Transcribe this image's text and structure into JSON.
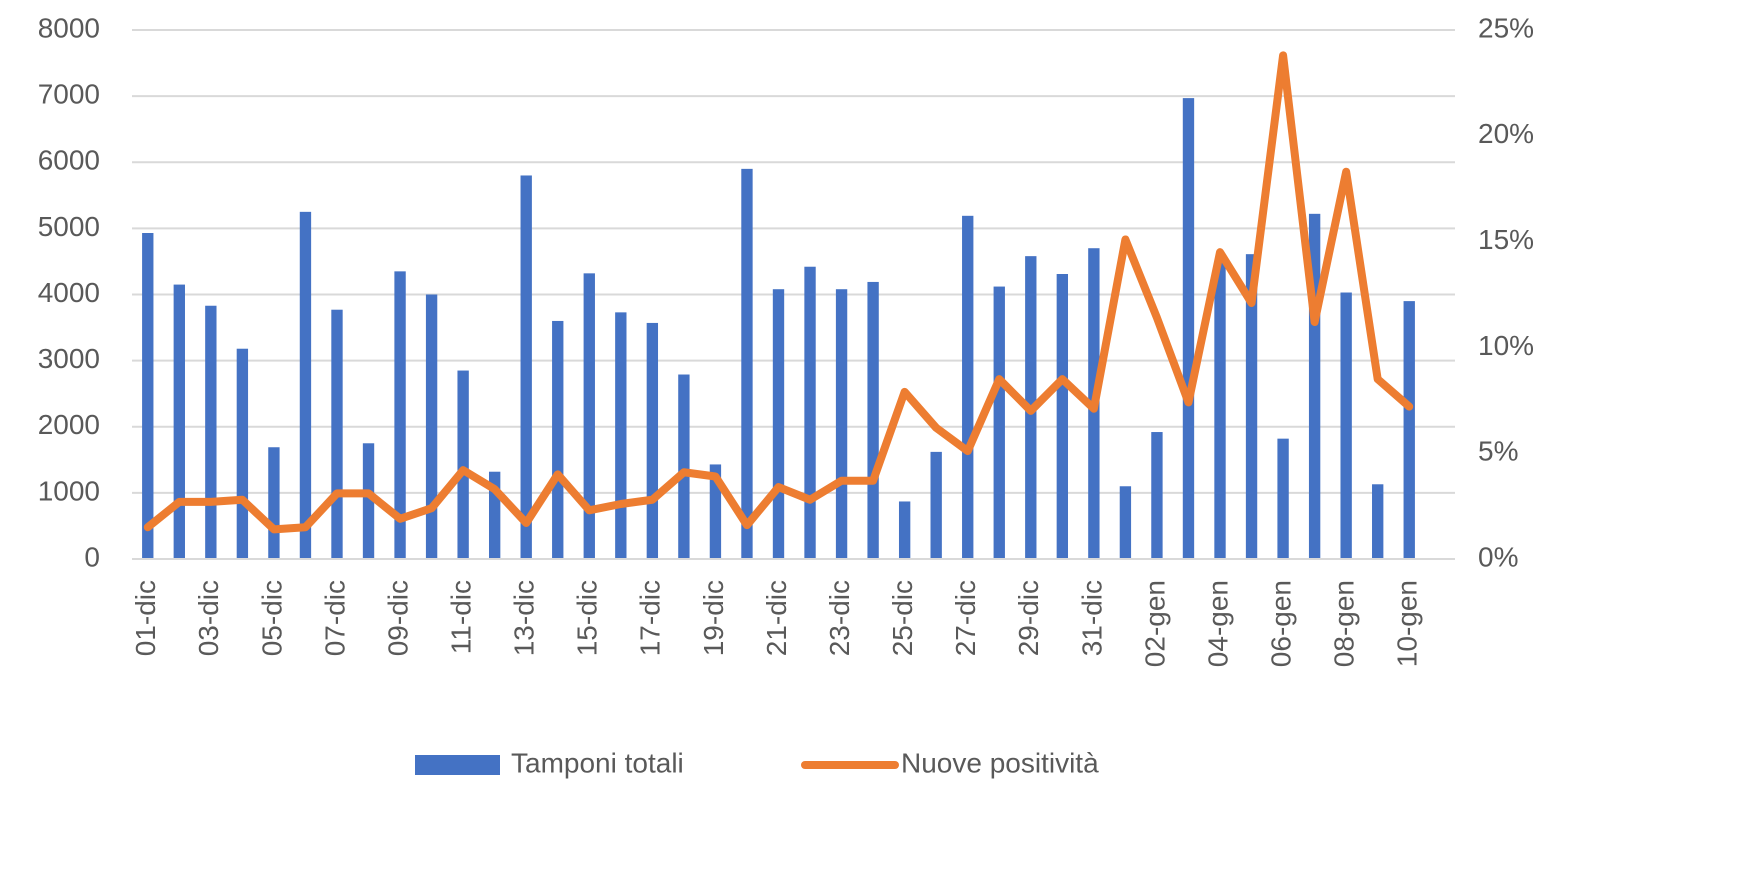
{
  "chart_data": {
    "type": "bar_line",
    "categories": [
      "01-dic",
      null,
      "03-dic",
      null,
      "05-dic",
      null,
      "07-dic",
      null,
      "09-dic",
      null,
      "11-dic",
      null,
      "13-dic",
      null,
      "15-dic",
      null,
      "17-dic",
      null,
      "19-dic",
      null,
      "21-dic",
      null,
      "23-dic",
      null,
      "25-dic",
      null,
      "27-dic",
      null,
      "29-dic",
      null,
      "31-dic",
      null,
      "02-gen",
      null,
      "04-gen",
      null,
      "06-gen",
      null,
      "08-gen",
      null,
      "10-gen"
    ],
    "series": [
      {
        "name": "Tamponi totali",
        "color": "#4472c4",
        "type": "bar",
        "values": [
          4930,
          4150,
          3830,
          3180,
          1690,
          5250,
          3770,
          1750,
          4350,
          4000,
          2850,
          1320,
          5800,
          3600,
          4320,
          3730,
          3570,
          2790,
          1430,
          5900,
          4080,
          4420,
          4080,
          4190,
          870,
          1620,
          5190,
          4120,
          4580,
          4310,
          4700,
          1100,
          1920,
          6970,
          4490,
          4610,
          1820,
          5220,
          4030,
          1130,
          3900
        ]
      },
      {
        "name": "Nuove positività",
        "color": "#ed7d31",
        "type": "line",
        "axis": "y2",
        "values": [
          1.5,
          2.7,
          2.7,
          2.8,
          1.4,
          1.5,
          3.1,
          3.1,
          1.9,
          2.4,
          4.2,
          3.3,
          1.7,
          4.0,
          2.3,
          2.6,
          2.8,
          4.1,
          3.9,
          1.6,
          3.4,
          2.8,
          3.7,
          3.7,
          7.9,
          6.2,
          5.1,
          8.5,
          7.0,
          8.5,
          7.1,
          15.1,
          11.4,
          7.4,
          14.5,
          12.1,
          23.8,
          11.2,
          18.3,
          8.5,
          7.2
        ]
      }
    ],
    "ylim": [
      0,
      8000
    ],
    "yticks": [
      0,
      1000,
      2000,
      3000,
      4000,
      5000,
      6000,
      7000,
      8000
    ],
    "y2lim": [
      0,
      25
    ],
    "y2ticks": [
      {
        "value": 0,
        "label": "0%"
      },
      {
        "value": 5,
        "label": "5%"
      },
      {
        "value": 10,
        "label": "10%"
      },
      {
        "value": 15,
        "label": "15%"
      },
      {
        "value": 20,
        "label": "20%"
      },
      {
        "value": 25,
        "label": "25%"
      }
    ],
    "grid": true,
    "legend": "bottom"
  }
}
